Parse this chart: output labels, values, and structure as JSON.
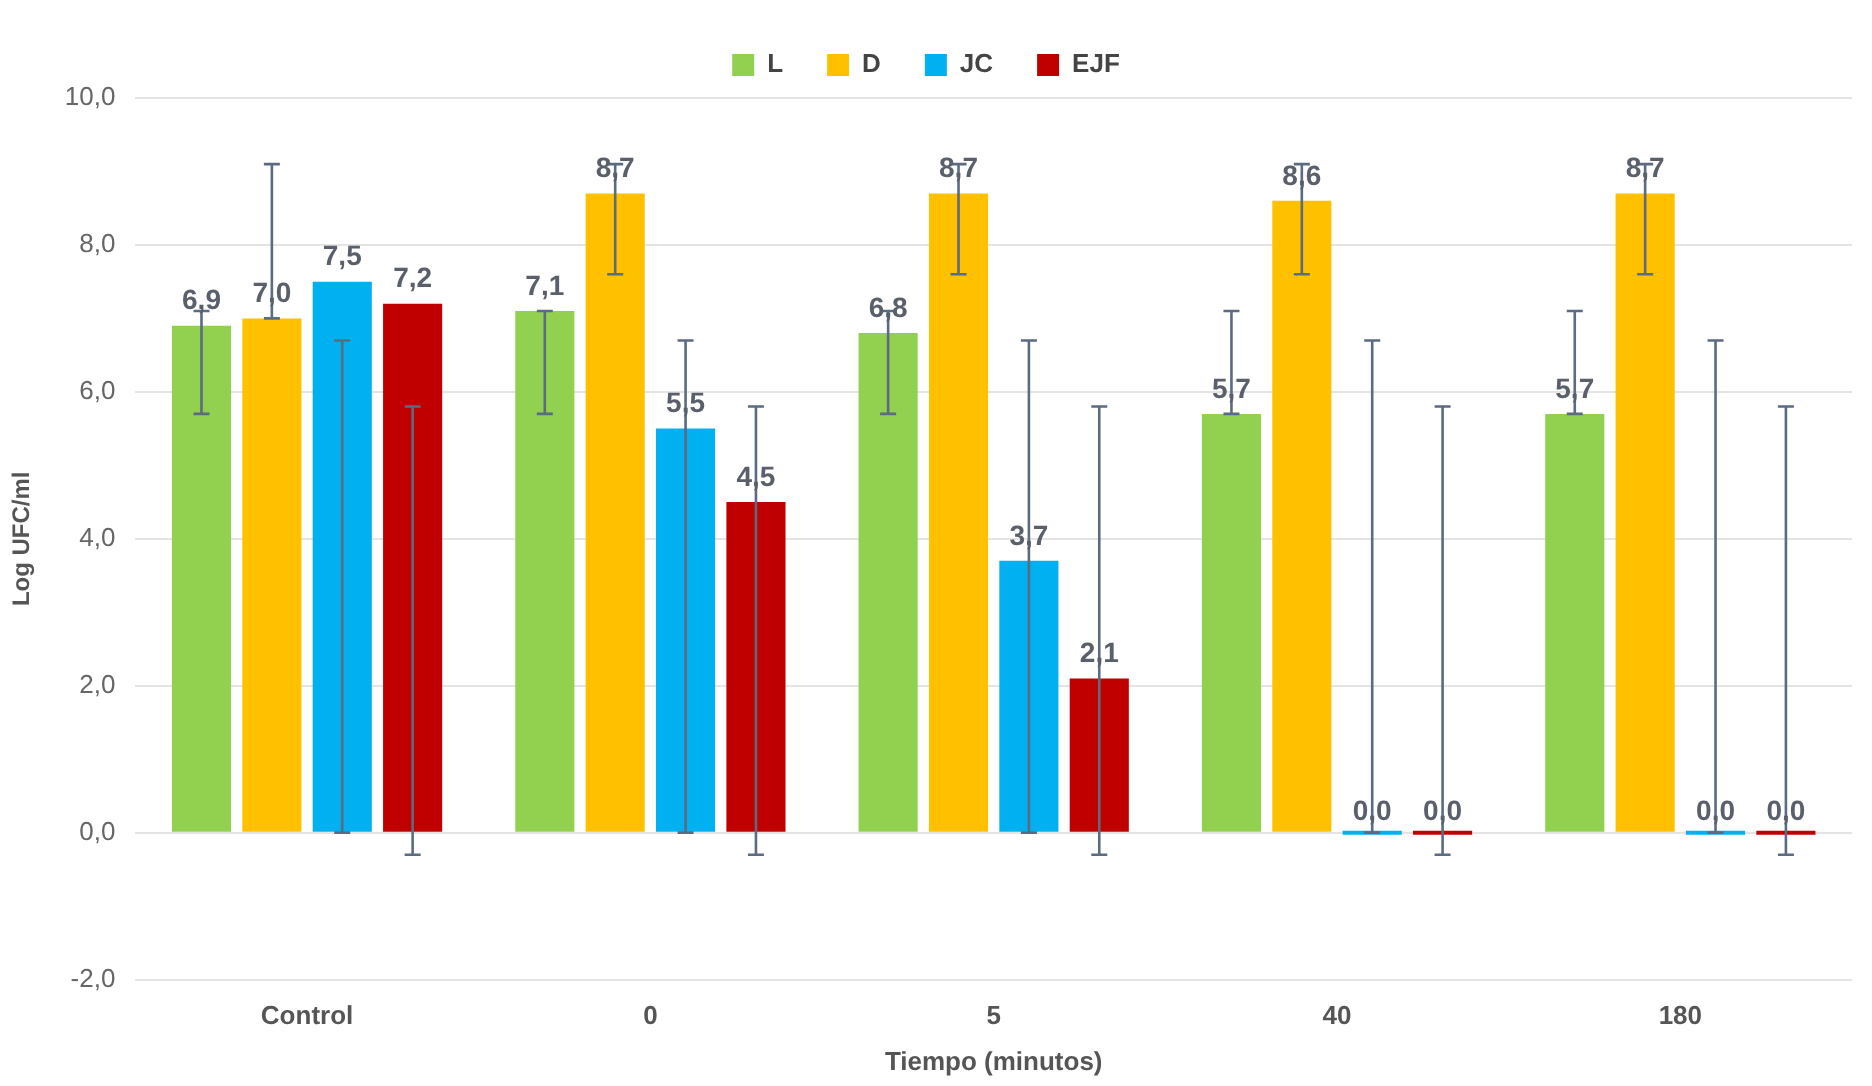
{
  "chart_data": {
    "type": "bar",
    "xlabel": "Tiempo (minutos)",
    "ylabel": "Log UFC/ml",
    "categories": [
      "Control",
      "0",
      "5",
      "40",
      "180"
    ],
    "series": [
      {
        "name": "L",
        "color": "#92d050",
        "values": [
          6.9,
          7.1,
          6.8,
          5.7,
          5.7
        ],
        "value_labels": [
          "6,9",
          "7,1",
          "6,8",
          "5,7",
          "5,7"
        ],
        "errors": [
          [
            5.7,
            7.1
          ],
          [
            5.7,
            7.1
          ],
          [
            5.7,
            7.1
          ],
          [
            5.7,
            7.1
          ],
          [
            5.7,
            7.1
          ]
        ]
      },
      {
        "name": "D",
        "color": "#ffc000",
        "values": [
          7.0,
          8.7,
          8.7,
          8.6,
          8.7
        ],
        "value_labels": [
          "7,0",
          "8,7",
          "8,7",
          "8,6",
          "8,7"
        ],
        "errors": [
          [
            7.0,
            9.1
          ],
          [
            7.6,
            9.1
          ],
          [
            7.6,
            9.1
          ],
          [
            7.6,
            9.1
          ],
          [
            7.6,
            9.1
          ]
        ]
      },
      {
        "name": "JC",
        "color": "#00b0f0",
        "values": [
          7.5,
          5.5,
          3.7,
          0,
          0
        ],
        "value_labels": [
          "7,5",
          "5,5",
          "3,7",
          "0,0",
          "0,0"
        ],
        "errors": [
          [
            0,
            6.7
          ],
          [
            0,
            6.7
          ],
          [
            0,
            6.7
          ],
          [
            0,
            6.7
          ],
          [
            0,
            6.7
          ]
        ]
      },
      {
        "name": "EJF",
        "color": "#c00000",
        "values": [
          7.2,
          4.5,
          2.1,
          0,
          0
        ],
        "value_labels": [
          "7,2",
          "4,5",
          "2,1",
          "0,0",
          "0,0"
        ],
        "errors": [
          [
            -0.3,
            5.8
          ],
          [
            -0.3,
            5.8
          ],
          [
            -0.3,
            5.8
          ],
          [
            -0.3,
            5.8
          ],
          [
            -0.3,
            5.8
          ]
        ]
      }
    ],
    "ylim": [
      -2,
      10
    ],
    "yticks": [
      {
        "value": -2,
        "label": "-2,0"
      },
      {
        "value": 0,
        "label": "0,0"
      },
      {
        "value": 2,
        "label": "2,0"
      },
      {
        "value": 4,
        "label": "4,0"
      },
      {
        "value": 6,
        "label": "6,0"
      },
      {
        "value": 8,
        "label": "8,0"
      },
      {
        "value": 10,
        "label": "10,0"
      }
    ],
    "grid": "y",
    "legend": "top"
  }
}
